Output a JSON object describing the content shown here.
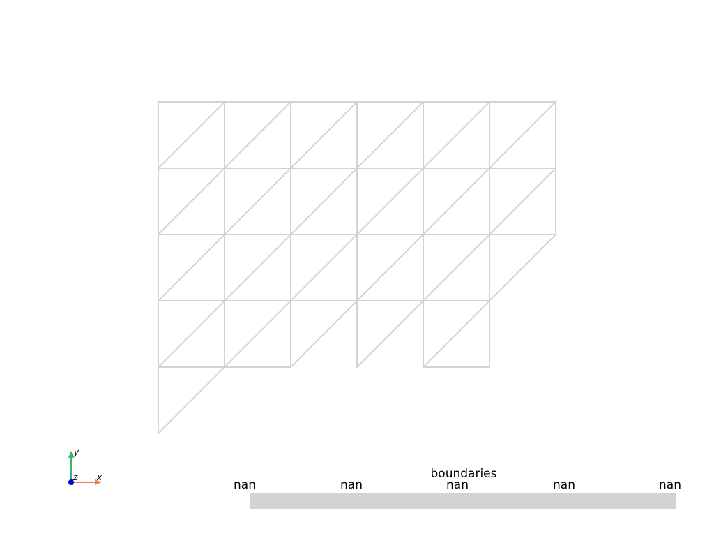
{
  "scalar_bar": {
    "title": "boundaries",
    "tick_labels": [
      "nan",
      "nan",
      "nan",
      "nan",
      "nan"
    ],
    "color": "#d3d3d3"
  },
  "mesh": {
    "edge_color": "#d3d3d3"
  },
  "axes": {
    "x_label": "x",
    "y_label": "y",
    "z_label": "z",
    "x_color": "#f08050",
    "y_color": "#3cb371",
    "z_color": "#0000cd"
  }
}
